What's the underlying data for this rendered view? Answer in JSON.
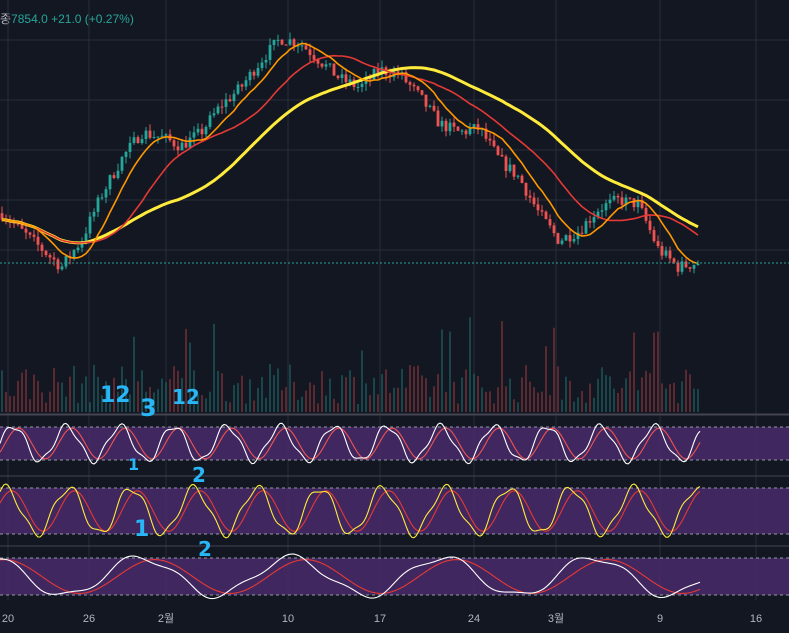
{
  "header": {
    "label_prefix": "종",
    "price": "7854.0",
    "change": "+21.0 (+0.27%)"
  },
  "colors": {
    "background": "#131722",
    "grid": "#2a2e39",
    "candle_up": "#26a69a",
    "candle_down": "#ef5350",
    "ma_yellow": "#ffeb3b",
    "ma_orange": "#ff9800",
    "ma_red": "#e53935",
    "osc_band": "#4a2a6a",
    "annotation": "#29b6f6",
    "price_line": "#26a69a"
  },
  "chart_data": {
    "type": "candlestick",
    "x_ticks": [
      "20",
      "26",
      "2월",
      "10",
      "17",
      "24",
      "3월",
      "9",
      "16"
    ],
    "current_price": 7854.0,
    "price_series_approx": [
      7900,
      7880,
      7860,
      7840,
      7870,
      7920,
      7960,
      7990,
      7985,
      7975,
      7990,
      8020,
      8040,
      8070,
      8095,
      8090,
      8070,
      8050,
      8040,
      8060,
      8055,
      8030,
      8000,
      7990,
      7995,
      7960,
      7940,
      7900,
      7870,
      7880,
      7905,
      7915,
      7910,
      7860,
      7840,
      7845
    ],
    "moving_averages": [
      {
        "color": "yellow",
        "trend": "rising to peak near 24 then falling"
      },
      {
        "color": "red",
        "trend": "medium-term"
      },
      {
        "color": "orange",
        "trend": "short-term"
      }
    ],
    "volume": "histogram below price",
    "oscillators": [
      {
        "panel": 1,
        "lines": [
          "white",
          "red"
        ],
        "band": "purple"
      },
      {
        "panel": 2,
        "lines": [
          "yellow",
          "red"
        ],
        "band": "purple"
      },
      {
        "panel": 3,
        "lines": [
          "white",
          "red"
        ],
        "band": "purple"
      }
    ],
    "annotations": [
      "12",
      "3",
      "12",
      "1",
      "2",
      "1",
      "2"
    ]
  }
}
